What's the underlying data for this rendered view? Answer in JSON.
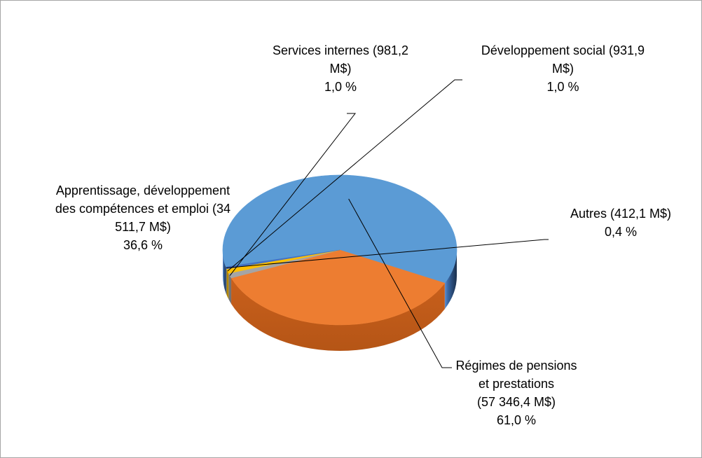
{
  "chart_data": {
    "type": "pie",
    "style": "3d",
    "title": "",
    "legend": "none",
    "series": [
      {
        "key": "regimes",
        "label_lines": [
          "Régimes de pensions",
          "et prestations",
          "(57 346,4 M$)",
          "61,0 %"
        ],
        "value": 57346.4,
        "percent": 61.0,
        "color": "#5b9bd5"
      },
      {
        "key": "apprentissage",
        "label_lines": [
          "Apprentissage, développement",
          "des compétences et emploi (34",
          "511,7 M$)",
          "36,6 %"
        ],
        "value": 34511.7,
        "percent": 36.6,
        "color": "#ed7d31"
      },
      {
        "key": "services",
        "label_lines": [
          "Services internes (981,2",
          "M$)",
          "1,0 %"
        ],
        "value": 981.2,
        "percent": 1.0,
        "color": "#a5a5a5"
      },
      {
        "key": "developpement",
        "label_lines": [
          "Développement social    (931,9",
          "M$)",
          "1,0 %"
        ],
        "value": 931.9,
        "percent": 1.0,
        "color": "#ffc000"
      },
      {
        "key": "autres",
        "label_lines": [
          "Autres (412,1 M$)",
          "0,4 %"
        ],
        "value": 412.1,
        "percent": 0.4,
        "color": "#4472c4"
      }
    ]
  }
}
